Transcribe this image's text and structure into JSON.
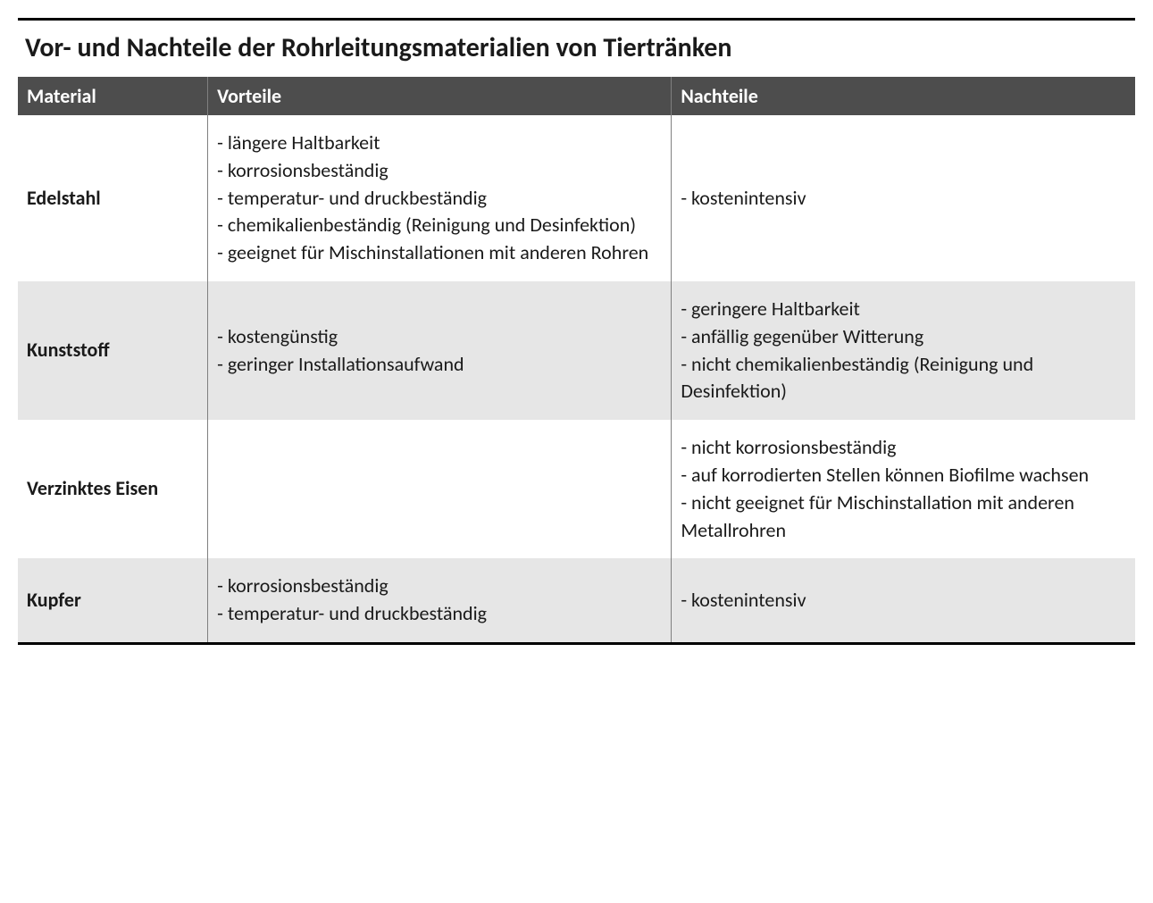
{
  "title": "Vor- und Nachteile der Rohrleitungsmaterialien von Tiertränken",
  "columns": {
    "material": "Material",
    "pros": "Vorteile",
    "cons": "Nachteile"
  },
  "rows": [
    {
      "material": "Edelstahl",
      "pros": [
        "- längere Haltbarkeit",
        "- korrosionsbeständig",
        "- temperatur- und druckbeständig",
        "- chemikalienbeständig (Reinigung und Desinfektion)",
        "- geeignet für Mischinstallationen mit anderen Rohren"
      ],
      "cons": [
        "- kostenintensiv"
      ]
    },
    {
      "material": "Kunststoff",
      "pros": [
        "- kostengünstig",
        "- geringer Installationsaufwand"
      ],
      "cons": [
        "- geringere Haltbarkeit",
        "- anfällig gegenüber Witterung",
        "- nicht chemikalienbeständig (Reinigung und Desinfektion)"
      ]
    },
    {
      "material": "Verzinktes Eisen",
      "pros": [],
      "cons": [
        "- nicht korrosionsbeständig",
        "- auf korrodierten Stellen können Biofilme wachsen",
        "- nicht geeignet für Mischinstallation mit anderen Metallrohren"
      ]
    },
    {
      "material": "Kupfer",
      "pros": [
        "- korrosionsbeständig",
        "- temperatur- und druckbeständig"
      ],
      "cons": [
        "- kostenintensiv"
      ]
    }
  ],
  "styling": {
    "header_bg": "#4d4d4d",
    "header_text_color": "#ffffff",
    "row_even_bg": "#ffffff",
    "row_odd_bg": "#e6e6e6",
    "border_color": "#808080",
    "rule_color": "#000000",
    "title_fontsize": 30,
    "header_fontsize": 22,
    "body_fontsize": 22,
    "font_family": "Calibri"
  }
}
